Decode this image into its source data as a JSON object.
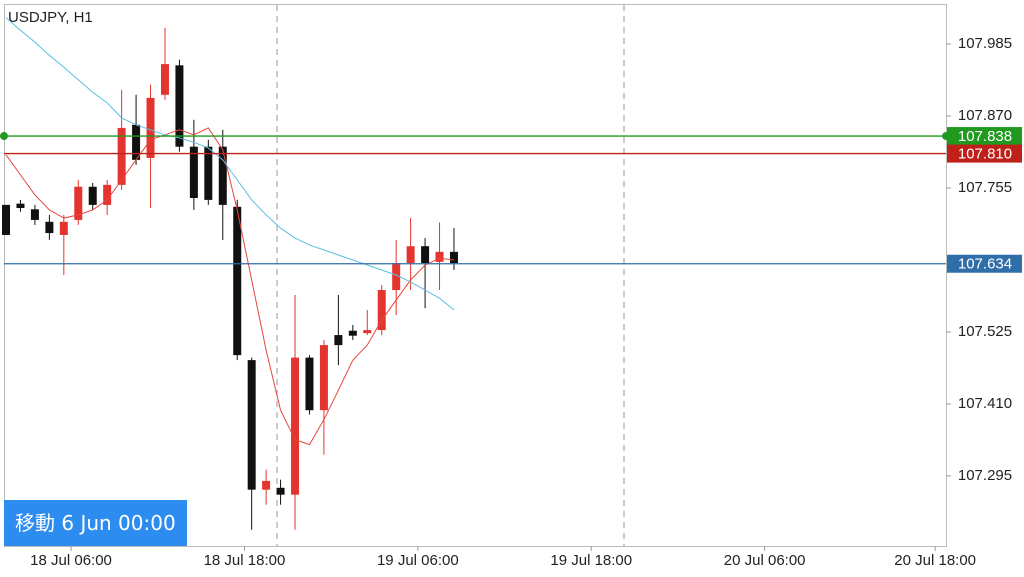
{
  "button": "移動 6 Jun 00:00",
  "chart_data": {
    "type": "candlestick",
    "title": "USDJPY, H1",
    "categories": [
      null,
      null,
      null,
      null,
      null,
      null,
      null,
      null,
      null,
      null,
      null,
      null,
      null,
      null,
      null,
      null,
      null,
      null,
      null,
      null,
      null,
      null,
      null,
      null,
      null,
      null,
      null,
      null,
      null,
      null,
      null,
      null
    ],
    "open": [
      107.728,
      107.73,
      107.721,
      107.701,
      107.68,
      107.704,
      107.757,
      107.728,
      107.76,
      107.856,
      107.803,
      107.904,
      107.951,
      107.821,
      107.821,
      107.821,
      107.725,
      107.48,
      107.273,
      107.276,
      107.265,
      107.484,
      107.4,
      107.52,
      107.527,
      107.523,
      107.528,
      107.592,
      107.635,
      107.662,
      107.637,
      107.653
    ],
    "high": [
      107.728,
      107.736,
      107.728,
      107.712,
      107.712,
      107.768,
      107.763,
      107.768,
      107.912,
      107.904,
      107.92,
      108.011,
      107.96,
      107.864,
      107.832,
      107.848,
      107.736,
      107.484,
      107.305,
      107.289,
      107.584,
      107.488,
      107.512,
      107.584,
      107.536,
      107.56,
      107.6,
      107.672,
      107.707,
      107.675,
      107.7,
      107.691
    ],
    "low": [
      107.68,
      107.717,
      107.696,
      107.672,
      107.616,
      107.696,
      107.72,
      107.712,
      107.752,
      107.792,
      107.723,
      107.896,
      107.813,
      107.72,
      107.728,
      107.672,
      107.48,
      107.209,
      107.249,
      107.249,
      107.209,
      107.393,
      107.329,
      107.472,
      107.512,
      107.52,
      107.52,
      107.552,
      107.592,
      107.563,
      107.592,
      107.624
    ],
    "close": [
      107.68,
      107.723,
      107.704,
      107.683,
      107.701,
      107.757,
      107.728,
      107.76,
      107.851,
      107.8,
      107.899,
      107.953,
      107.821,
      107.739,
      107.736,
      107.728,
      107.488,
      107.273,
      107.287,
      107.265,
      107.484,
      107.4,
      107.504,
      107.504,
      107.519,
      107.528,
      107.592,
      107.635,
      107.662,
      107.635,
      107.653,
      107.635
    ],
    "bull_color": "#e3342f",
    "bear_color": "#111111",
    "ma": [
      {
        "color": "#e8463c",
        "values": [
          107.808,
          107.776,
          107.744,
          107.72,
          107.707,
          107.712,
          107.72,
          107.736,
          107.768,
          107.8,
          107.832,
          107.84,
          107.848,
          107.84,
          107.851,
          107.816,
          107.72,
          107.608,
          107.496,
          107.4,
          107.353,
          107.345,
          107.385,
          107.432,
          107.48,
          107.504,
          107.544,
          107.576,
          107.608,
          107.632,
          107.643,
          107.64
        ]
      },
      {
        "color": "#5bbfe0",
        "values": [
          108.027,
          108.007,
          107.988,
          107.967,
          107.948,
          107.928,
          107.908,
          107.891,
          107.867,
          107.856,
          107.848,
          107.84,
          107.835,
          107.828,
          107.819,
          107.8,
          107.768,
          107.736,
          107.712,
          107.691,
          107.675,
          107.664,
          107.656,
          107.648,
          107.64,
          107.632,
          107.624,
          107.616,
          107.605,
          107.592,
          107.579,
          107.56
        ]
      }
    ],
    "levels": [
      {
        "value": 107.838,
        "color": "#1f9a1f"
      },
      {
        "value": {
          "value": 107.81,
          "label": "107.810"
        },
        "color": "#c0201a"
      },
      {
        "value": 107.634,
        "color": "#2f6ea8"
      }
    ],
    "xlim": [
      -0.14,
      65.05
    ],
    "xticks": [
      {
        "value": 4.5,
        "label": "18 Jul 06:00"
      },
      {
        "value": 16.5,
        "label": "18 Jul 18:00"
      },
      {
        "value": 28.5,
        "label": "19 Jul 06:00"
      },
      {
        "value": 40.5,
        "label": "19 Jul 18:00"
      },
      {
        "value": 52.5,
        "label": "20 Jul 06:00"
      },
      {
        "value": 64.3,
        "label": "20 Jul 18:00"
      }
    ],
    "ylim": [
      107.183,
      108.049
    ],
    "yticks": [
      107.985,
      {
        "value": 107.87,
        "label": "107.870"
      },
      107.755,
      107.525,
      {
        "value": 107.41,
        "label": "107.410"
      },
      107.295
    ]
  }
}
